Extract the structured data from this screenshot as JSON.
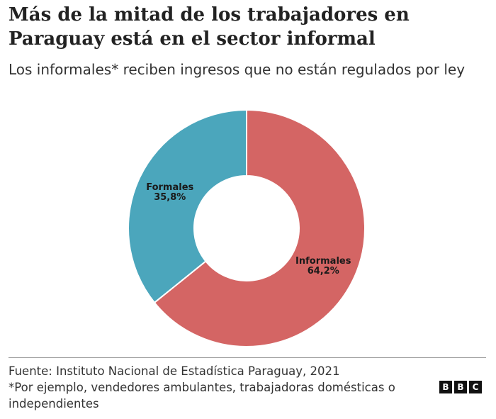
{
  "header": {
    "title": "Más de la mitad de los trabajadores en Paraguay está en el sector informal",
    "subtitle": "Los informales* reciben ingresos que no están regulados por ley"
  },
  "chart_data": {
    "type": "pie",
    "donut": true,
    "title": "Más de la mitad de los trabajadores en Paraguay está en el sector informal",
    "categories": [
      "Informales",
      "Formales"
    ],
    "values": [
      64.2,
      35.8
    ],
    "value_labels": [
      "64,2%",
      "35,8%"
    ],
    "colors": [
      "#D46564",
      "#4BA6BC"
    ],
    "start": "top",
    "direction": "clockwise"
  },
  "footer": {
    "source": "Fuente: Instituto Nacional de Estadística Paraguay, 2021",
    "note": "*Por ejemplo, vendedores ambulantes, trabajadoras domésticas o independientes"
  },
  "logo": {
    "letters": [
      "B",
      "B",
      "C"
    ]
  }
}
